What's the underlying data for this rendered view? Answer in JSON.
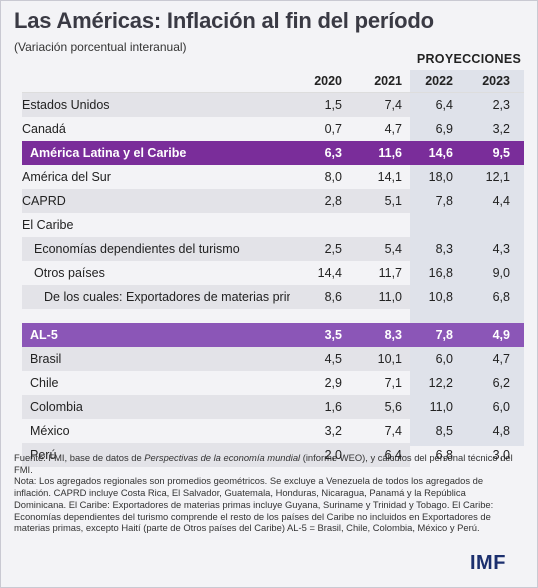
{
  "title": "Las Américas: Inflación al fin del período",
  "subtitle": "(Variación porcentual interanual)",
  "projections_label": "PROYECCIONES",
  "years": [
    "2020",
    "2021",
    "2022",
    "2023"
  ],
  "rows": [
    {
      "label": "Estados Unidos",
      "values": [
        "1,5",
        "7,4",
        "6,4",
        "2,3"
      ]
    },
    {
      "label": "Canadá",
      "values": [
        "0,7",
        "4,7",
        "6,9",
        "3,2"
      ]
    },
    {
      "label": "América Latina y el Caribe",
      "values": [
        "6,3",
        "11,6",
        "14,6",
        "9,5"
      ]
    },
    {
      "label": "América del Sur",
      "values": [
        "8,0",
        "14,1",
        "18,0",
        "12,1"
      ]
    },
    {
      "label": "CAPRD",
      "values": [
        "2,8",
        "5,1",
        "7,8",
        "4,4"
      ]
    },
    {
      "label": "El Caribe",
      "values": [
        "",
        "",
        "",
        ""
      ]
    },
    {
      "label": "Economías dependientes del turismo",
      "values": [
        "2,5",
        "5,4",
        "8,3",
        "4,3"
      ]
    },
    {
      "label": "Otros países",
      "values": [
        "14,4",
        "11,7",
        "16,8",
        "9,0"
      ]
    },
    {
      "label": "De los cuales: Exportadores de materias primas",
      "values": [
        "8,6",
        "11,0",
        "10,8",
        "6,8"
      ]
    },
    {
      "label": "AL-5",
      "values": [
        "3,5",
        "8,3",
        "7,8",
        "4,9"
      ]
    },
    {
      "label": "Brasil",
      "values": [
        "4,5",
        "10,1",
        "6,0",
        "4,7"
      ]
    },
    {
      "label": "Chile",
      "values": [
        "2,9",
        "7,1",
        "12,2",
        "6,2"
      ]
    },
    {
      "label": "Colombia",
      "values": [
        "1,6",
        "5,6",
        "11,0",
        "6,0"
      ]
    },
    {
      "label": "México",
      "values": [
        "3,2",
        "7,4",
        "8,5",
        "4,8"
      ]
    },
    {
      "label": "Perú",
      "values": [
        "2,0",
        "6,4",
        "6,8",
        "3,0"
      ]
    }
  ],
  "notes": {
    "source_prefix": "Fuente: FMI, base de datos de ",
    "source_italic": "Perspectivas de la economía mundial",
    "source_suffix": " (informe WEO), y cálculos del personal técnico del FMI.",
    "note": "Nota: Los agregados regionales son promedios geométricos. Se excluye a Venezuela de todos los agregados de inflación. CAPRD incluye Costa Rica, El Salvador, Guatemala, Honduras, Nicaragua, Panamá y la República Dominicana. El Caribe: Exportadores de materias primas incluye Guyana, Suriname y Trinidad y Tobago. El Caribe: Economías dependientes del turismo comprende el resto de los países del Caribe no incluidos en Exportadores de materias primas, excepto Haití (parte de Otros países del Caribe) AL-5 = Brasil, Chile, Colombia, México y Perú."
  },
  "logo": "IMF"
}
